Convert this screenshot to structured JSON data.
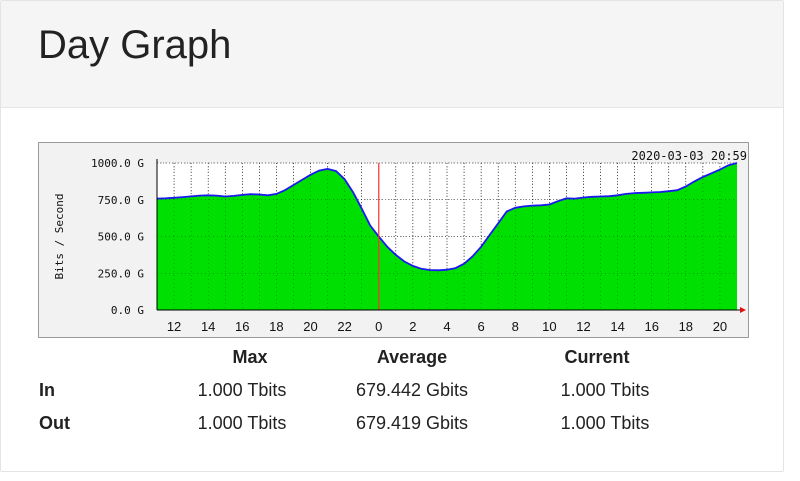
{
  "page": {
    "title": "Day Graph"
  },
  "chart_data": {
    "type": "area",
    "timestamp": "2020-03-03 20:59",
    "ylabel": "Bits / Second",
    "y_ticks": [
      "0.0 G",
      "250.0 G",
      "500.0 G",
      "750.0 G",
      "1000.0 G"
    ],
    "ylim": [
      0,
      1000
    ],
    "x_ticks": [
      "12",
      "14",
      "16",
      "18",
      "20",
      "22",
      "0",
      "2",
      "4",
      "6",
      "8",
      "10",
      "12",
      "14",
      "16",
      "18",
      "20"
    ],
    "grid": true,
    "day_boundary_tick": "0",
    "colors": {
      "in": "#00e000",
      "out": "#1a1aee",
      "boundary": "#ff3030"
    },
    "x_hours": [
      11,
      11.5,
      12,
      12.5,
      13,
      13.5,
      14,
      14.5,
      15,
      15.5,
      16,
      16.5,
      17,
      17.5,
      18,
      18.5,
      19,
      19.5,
      20,
      20.5,
      21,
      21.5,
      22,
      22.5,
      23,
      23.5,
      24,
      24.5,
      25,
      25.5,
      26,
      26.5,
      27,
      27.5,
      28,
      28.5,
      29,
      29.5,
      30,
      30.5,
      31,
      31.5,
      32,
      32.5,
      33,
      33.5,
      34,
      34.5,
      35,
      35.5,
      36,
      36.5,
      37,
      37.5,
      38,
      38.5,
      39,
      39.5,
      40,
      40.5,
      41,
      41.5,
      42,
      42.5,
      43,
      43.5,
      44,
      44.5,
      45
    ],
    "series": [
      {
        "name": "In",
        "values": [
          758,
          760,
          763,
          768,
          773,
          778,
          780,
          778,
          772,
          776,
          783,
          788,
          786,
          780,
          790,
          815,
          850,
          885,
          920,
          948,
          960,
          945,
          890,
          800,
          690,
          575,
          500,
          430,
          375,
          330,
          300,
          280,
          272,
          270,
          274,
          285,
          315,
          365,
          430,
          510,
          590,
          670,
          695,
          705,
          710,
          712,
          718,
          740,
          760,
          758,
          765,
          770,
          772,
          774,
          780,
          790,
          795,
          797,
          800,
          803,
          808,
          815,
          840,
          875,
          905,
          930,
          955,
          985,
          1000
        ]
      },
      {
        "name": "Out",
        "values": [
          758,
          760,
          763,
          768,
          773,
          778,
          780,
          778,
          772,
          776,
          783,
          788,
          786,
          780,
          790,
          815,
          850,
          885,
          920,
          948,
          960,
          945,
          890,
          800,
          690,
          575,
          500,
          430,
          375,
          330,
          300,
          280,
          272,
          270,
          274,
          285,
          315,
          365,
          430,
          510,
          590,
          670,
          695,
          705,
          710,
          712,
          718,
          740,
          760,
          758,
          765,
          770,
          772,
          774,
          780,
          790,
          795,
          797,
          800,
          803,
          808,
          815,
          840,
          875,
          905,
          930,
          955,
          985,
          1000
        ]
      }
    ]
  },
  "stats": {
    "headers": {
      "max": "Max",
      "average": "Average",
      "current": "Current"
    },
    "rows": [
      {
        "label": "In",
        "max": "1.000 Tbits",
        "average": "679.442 Gbits",
        "current": "1.000 Tbits"
      },
      {
        "label": "Out",
        "max": "1.000 Tbits",
        "average": "679.419 Gbits",
        "current": "1.000 Tbits"
      }
    ]
  }
}
